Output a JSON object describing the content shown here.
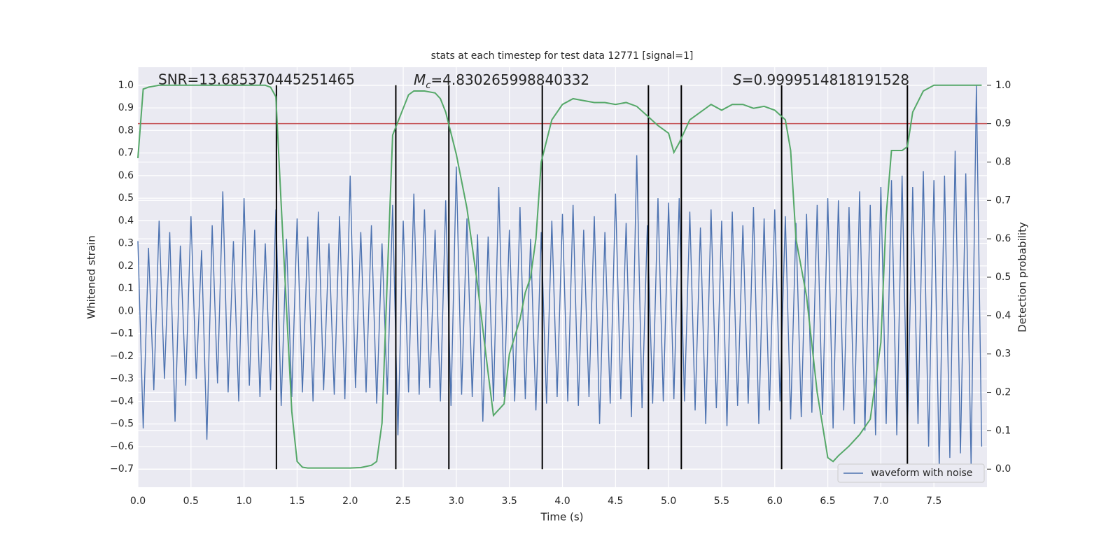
{
  "chart_data": {
    "type": "line",
    "title": "stats at each timestep for test data 12771 [signal=1]",
    "x_label": "Time (s)",
    "y_label": "Whitened strain",
    "y2_label": "Detection probability",
    "xlim": [
      0,
      8
    ],
    "ylim": [
      -0.78,
      1.08
    ],
    "y2lim": [
      -0.047,
      1.047
    ],
    "xticks": [
      {
        "value": 0,
        "label": "0.0"
      },
      0.5,
      {
        "value": 1,
        "label": "1.0"
      },
      1.5,
      {
        "value": 2,
        "label": "2.0"
      },
      2.5,
      {
        "value": 3,
        "label": "3.0"
      },
      3.5,
      {
        "value": 4,
        "label": "4.0"
      },
      4.5,
      {
        "value": 5,
        "label": "5.0"
      },
      5.5,
      {
        "value": 6,
        "label": "6.0"
      },
      6.5,
      {
        "value": 7,
        "label": "7.0"
      },
      7.5
    ],
    "yticks": [
      {
        "value": 1,
        "label": "1.0"
      },
      0.9,
      0.8,
      0.7,
      0.6,
      0.5,
      0.4,
      0.3,
      0.2,
      0.1,
      {
        "value": 0,
        "label": "0.0"
      },
      {
        "value": -0.1,
        "label": "−0.1"
      },
      {
        "value": -0.2,
        "label": "−0.2"
      },
      {
        "value": -0.3,
        "label": "−0.3"
      },
      {
        "value": -0.4,
        "label": "−0.4"
      },
      {
        "value": -0.5,
        "label": "−0.5"
      },
      {
        "value": -0.6,
        "label": "−0.6"
      },
      {
        "value": -0.7,
        "label": "−0.7"
      }
    ],
    "y2ticks": [
      {
        "value": 0,
        "label": "0.0"
      },
      0.1,
      0.2,
      0.3,
      0.4,
      0.5,
      0.6,
      0.7,
      0.8,
      0.9,
      {
        "value": 1,
        "label": "1.0"
      }
    ],
    "grid": true,
    "background": "#eaeaf2",
    "legend": "lower right",
    "series": [
      {
        "name": "waveform with noise",
        "color": "#4c72b0",
        "x": [
          0,
          0.05,
          0.1,
          0.15,
          0.2,
          0.25,
          0.3,
          0.35,
          0.4,
          0.45,
          0.5,
          0.55,
          0.6,
          0.65,
          0.7,
          0.75,
          0.8,
          0.85,
          0.9,
          0.95,
          1,
          1.05,
          1.1,
          1.15,
          1.2,
          1.25,
          1.3,
          1.35,
          1.4,
          1.45,
          1.5,
          1.55,
          1.6,
          1.65,
          1.7,
          1.75,
          1.8,
          1.85,
          1.9,
          1.95,
          2,
          2.05,
          2.1,
          2.15,
          2.2,
          2.25,
          2.3,
          2.35,
          2.4,
          2.45,
          2.5,
          2.55,
          2.6,
          2.65,
          2.7,
          2.75,
          2.8,
          2.85,
          2.9,
          2.95,
          3,
          3.05,
          3.1,
          3.15,
          3.2,
          3.25,
          3.3,
          3.35,
          3.4,
          3.45,
          3.5,
          3.55,
          3.6,
          3.65,
          3.7,
          3.75,
          3.8,
          3.85,
          3.9,
          3.95,
          4,
          4.05,
          4.1,
          4.15,
          4.2,
          4.25,
          4.3,
          4.35,
          4.4,
          4.45,
          4.5,
          4.55,
          4.6,
          4.65,
          4.7,
          4.75,
          4.8,
          4.85,
          4.9,
          4.95,
          5,
          5.05,
          5.1,
          5.15,
          5.2,
          5.25,
          5.3,
          5.35,
          5.4,
          5.45,
          5.5,
          5.55,
          5.6,
          5.65,
          5.7,
          5.75,
          5.8,
          5.85,
          5.9,
          5.95,
          6,
          6.05,
          6.1,
          6.15,
          6.2,
          6.25,
          6.3,
          6.35,
          6.4,
          6.45,
          6.5,
          6.55,
          6.6,
          6.65,
          6.7,
          6.75,
          6.8,
          6.85,
          6.9,
          6.95,
          7,
          7.05,
          7.1,
          7.15,
          7.2,
          7.25,
          7.3,
          7.35,
          7.4,
          7.45,
          7.5,
          7.55,
          7.6,
          7.65,
          7.7,
          7.75,
          7.8,
          7.85,
          7.9,
          7.95
        ],
        "values": [
          0.31,
          -0.52,
          0.28,
          -0.35,
          0.4,
          -0.3,
          0.35,
          -0.49,
          0.29,
          -0.33,
          0.42,
          -0.3,
          0.27,
          -0.57,
          0.38,
          -0.32,
          0.53,
          -0.36,
          0.31,
          -0.4,
          0.5,
          -0.33,
          0.36,
          -0.38,
          0.3,
          -0.35,
          0.45,
          -0.42,
          0.32,
          -0.38,
          0.41,
          -0.36,
          0.33,
          -0.4,
          0.44,
          -0.35,
          0.3,
          -0.37,
          0.42,
          -0.39,
          0.6,
          -0.34,
          0.35,
          -0.36,
          0.38,
          -0.41,
          0.3,
          -0.37,
          0.47,
          -0.55,
          0.4,
          -0.36,
          0.52,
          -0.37,
          0.45,
          -0.34,
          0.36,
          -0.4,
          0.49,
          -0.42,
          0.64,
          -0.37,
          0.41,
          -0.38,
          0.34,
          -0.49,
          0.33,
          -0.4,
          0.55,
          -0.38,
          0.36,
          -0.4,
          0.46,
          -0.39,
          0.32,
          -0.44,
          0.35,
          -0.41,
          0.4,
          -0.38,
          0.43,
          -0.4,
          0.47,
          -0.42,
          0.36,
          -0.38,
          0.42,
          -0.5,
          0.35,
          -0.41,
          0.52,
          -0.39,
          0.39,
          -0.47,
          0.69,
          -0.43,
          0.38,
          -0.41,
          0.5,
          -0.4,
          0.48,
          -0.39,
          0.5,
          -0.4,
          0.44,
          -0.44,
          0.37,
          -0.5,
          0.45,
          -0.43,
          0.4,
          -0.51,
          0.44,
          -0.42,
          0.38,
          -0.41,
          0.46,
          -0.5,
          0.41,
          -0.44,
          0.45,
          -0.4,
          0.42,
          -0.48,
          0.39,
          -0.47,
          0.43,
          -0.45,
          0.47,
          -0.46,
          0.5,
          -0.52,
          0.49,
          -0.44,
          0.46,
          -0.5,
          0.53,
          -0.53,
          0.47,
          -0.55,
          0.55,
          -0.5,
          0.58,
          -0.55,
          0.6,
          -0.54,
          0.55,
          -0.5,
          0.62,
          -0.6,
          0.58,
          -0.7,
          0.6,
          -0.65,
          0.71,
          -0.63,
          0.61,
          -0.68,
          1.0,
          -0.6
        ]
      },
      {
        "color": "#55a868",
        "axis": "y2",
        "x": [
          0,
          0.05,
          0.1,
          0.2,
          0.4,
          0.6,
          0.8,
          1,
          1.2,
          1.25,
          1.3,
          1.35,
          1.45,
          1.5,
          1.55,
          1.6,
          1.8,
          2,
          2.1,
          2.2,
          2.25,
          2.3,
          2.35,
          2.4,
          2.5,
          2.55,
          2.6,
          2.7,
          2.8,
          2.85,
          2.9,
          3,
          3.1,
          3.2,
          3.3,
          3.35,
          3.45,
          3.5,
          3.6,
          3.65,
          3.7,
          3.75,
          3.8,
          3.9,
          4,
          4.1,
          4.2,
          4.3,
          4.4,
          4.5,
          4.6,
          4.7,
          4.8,
          4.9,
          5,
          5.05,
          5.1,
          5.2,
          5.3,
          5.4,
          5.5,
          5.6,
          5.7,
          5.8,
          5.9,
          6,
          6.1,
          6.15,
          6.2,
          6.3,
          6.4,
          6.5,
          6.55,
          6.6,
          6.7,
          6.8,
          6.9,
          7,
          7.05,
          7.1,
          7.2,
          7.25,
          7.3,
          7.4,
          7.5,
          7.7,
          7.95
        ],
        "values": [
          0.81,
          0.99,
          0.995,
          1.0,
          1.0,
          1.0,
          1.0,
          1.0,
          1.0,
          0.995,
          0.97,
          0.69,
          0.15,
          0.02,
          0.005,
          0.003,
          0.003,
          0.003,
          0.004,
          0.01,
          0.02,
          0.12,
          0.5,
          0.87,
          0.94,
          0.975,
          0.985,
          0.985,
          0.98,
          0.965,
          0.93,
          0.82,
          0.68,
          0.48,
          0.25,
          0.14,
          0.17,
          0.3,
          0.39,
          0.46,
          0.5,
          0.6,
          0.8,
          0.91,
          0.95,
          0.965,
          0.96,
          0.955,
          0.955,
          0.95,
          0.955,
          0.945,
          0.92,
          0.895,
          0.875,
          0.825,
          0.85,
          0.91,
          0.93,
          0.95,
          0.935,
          0.95,
          0.95,
          0.94,
          0.945,
          0.935,
          0.91,
          0.83,
          0.6,
          0.45,
          0.2,
          0.03,
          0.02,
          0.035,
          0.06,
          0.09,
          0.13,
          0.33,
          0.66,
          0.83,
          0.83,
          0.84,
          0.93,
          0.985,
          1.0,
          1.0,
          1.0
        ]
      }
    ],
    "hline": {
      "value": 0.9,
      "axis": "y2",
      "color": "#c44e52"
    },
    "vlines": {
      "values": [
        1.305,
        2.43,
        2.93,
        3.81,
        4.81,
        5.12,
        6.065,
        7.25
      ],
      "color": "#000000"
    },
    "annotations": [
      {
        "text": "SNR=13.685370445251465"
      },
      {
        "symbol": "M",
        "subscript": "c",
        "text": "=4.830265998840332"
      },
      {
        "symbol": "S",
        "text": "=0.9999514818191528"
      }
    ]
  }
}
